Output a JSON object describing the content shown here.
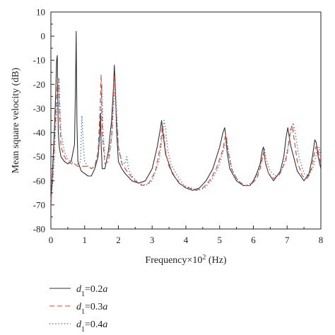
{
  "chart_data": {
    "type": "line",
    "xlabel": "Frequency×10² (Hz)",
    "xlabel_prefix": "Frequency×10",
    "xlabel_exp": "2",
    "xlabel_suffix": " (Hz)",
    "ylabel": "Mean square velocity (dB)",
    "xlim": [
      0,
      8
    ],
    "ylim": [
      -80,
      10
    ],
    "xticks": [
      0,
      1,
      2,
      3,
      4,
      5,
      6,
      7,
      8
    ],
    "yticks": [
      10,
      0,
      -10,
      -20,
      -30,
      -40,
      -50,
      -60,
      -70,
      -80
    ],
    "grid": false,
    "legend_position": "bottom-left",
    "series": [
      {
        "name": "d1=0.2a",
        "legend_label": {
          "var": "d",
          "sub": "1",
          "rest": "=0.2",
          "unit": "a"
        },
        "color": "#333333",
        "style": "solid",
        "x": [
          0.0,
          0.05,
          0.1,
          0.14,
          0.17,
          0.19,
          0.2,
          0.22,
          0.25,
          0.3,
          0.4,
          0.5,
          0.6,
          0.7,
          0.73,
          0.75,
          0.77,
          0.8,
          0.9,
          1.0,
          1.1,
          1.2,
          1.3,
          1.4,
          1.45,
          1.47,
          1.49,
          1.52,
          1.6,
          1.7,
          1.8,
          1.86,
          1.88,
          1.9,
          1.95,
          2.0,
          2.1,
          2.2,
          2.4,
          2.6,
          2.8,
          3.0,
          3.15,
          3.25,
          3.28,
          3.32,
          3.4,
          3.6,
          3.8,
          4.0,
          4.2,
          4.4,
          4.6,
          4.8,
          5.0,
          5.1,
          5.15,
          5.18,
          5.22,
          5.3,
          5.5,
          5.7,
          5.9,
          6.0,
          6.1,
          6.2,
          6.27,
          6.3,
          6.35,
          6.45,
          6.6,
          6.8,
          6.9,
          6.97,
          7.02,
          7.1,
          7.3,
          7.5,
          7.65,
          7.75,
          7.82,
          7.86,
          7.92,
          8.0
        ],
        "y": [
          -70,
          -55,
          -40,
          -25,
          -10,
          -8,
          -20,
          -40,
          -46,
          -50,
          -52,
          -53,
          -52,
          -45,
          -20,
          2,
          -35,
          -52,
          -56,
          -57,
          -58,
          -58,
          -55,
          -50,
          -40,
          -32,
          -45,
          -55,
          -55,
          -48,
          -35,
          -20,
          -12,
          -18,
          -40,
          -52,
          -55,
          -57,
          -60,
          -61,
          -60,
          -55,
          -46,
          -38,
          -35,
          -40,
          -49,
          -57,
          -61,
          -63,
          -64,
          -63,
          -60,
          -55,
          -46,
          -40,
          -38,
          -41,
          -48,
          -55,
          -60,
          -62,
          -62,
          -60,
          -57,
          -53,
          -47,
          -46,
          -52,
          -57,
          -60,
          -56,
          -50,
          -42,
          -38,
          -45,
          -56,
          -60,
          -57,
          -50,
          -43,
          -44,
          -50,
          -55
        ]
      },
      {
        "name": "d1=0.3a",
        "legend_label": {
          "var": "d",
          "sub": "1",
          "rest": "=0.3",
          "unit": "a"
        },
        "color": "#e0412a",
        "style": "dashed",
        "x": [
          0.0,
          0.05,
          0.1,
          0.15,
          0.2,
          0.23,
          0.25,
          0.3,
          0.4,
          0.5,
          0.6,
          0.7,
          0.8,
          0.9,
          1.0,
          1.1,
          1.2,
          1.3,
          1.4,
          1.46,
          1.49,
          1.52,
          1.6,
          1.7,
          1.8,
          1.86,
          1.89,
          1.92,
          2.0,
          2.1,
          2.2,
          2.3,
          2.5,
          2.7,
          2.9,
          3.1,
          3.25,
          3.3,
          3.34,
          3.4,
          3.5,
          3.7,
          3.9,
          4.1,
          4.3,
          4.5,
          4.7,
          4.9,
          5.1,
          5.16,
          5.19,
          5.24,
          5.35,
          5.5,
          5.7,
          5.9,
          6.1,
          6.2,
          6.29,
          6.31,
          6.36,
          6.45,
          6.6,
          6.75,
          6.85,
          6.95,
          7.0,
          7.05,
          7.1,
          7.15,
          7.2,
          7.3,
          7.45,
          7.6,
          7.72,
          7.8,
          7.85,
          7.9,
          7.95,
          8.0
        ],
        "y": [
          -68,
          -60,
          -45,
          -30,
          -18,
          -17,
          -30,
          -46,
          -50,
          -52,
          -53,
          -53,
          -54,
          -54,
          -54,
          -54,
          -55,
          -54,
          -48,
          -30,
          -16,
          -40,
          -53,
          -52,
          -42,
          -22,
          -16,
          -28,
          -46,
          -53,
          -55,
          -57,
          -60,
          -62,
          -61,
          -56,
          -45,
          -37,
          -40,
          -48,
          -54,
          -59,
          -62,
          -63,
          -64,
          -63,
          -60,
          -55,
          -47,
          -42,
          -41,
          -47,
          -55,
          -59,
          -62,
          -62,
          -59,
          -55,
          -49,
          -48,
          -53,
          -57,
          -59,
          -58,
          -55,
          -52,
          -49,
          -44,
          -39,
          -37,
          -42,
          -52,
          -58,
          -59,
          -55,
          -49,
          -46,
          -46,
          -50,
          -53
        ]
      },
      {
        "name": "d1=0.4a",
        "legend_label": {
          "var": "d",
          "sub": "1",
          "rest": "=0.4",
          "unit": "a"
        },
        "color": "#3a6ab0",
        "style": "dotted",
        "x": [
          0.0,
          0.05,
          0.1,
          0.15,
          0.2,
          0.24,
          0.26,
          0.3,
          0.4,
          0.5,
          0.6,
          0.7,
          0.8,
          0.88,
          0.92,
          0.96,
          1.0,
          1.1,
          1.2,
          1.3,
          1.4,
          1.48,
          1.51,
          1.54,
          1.6,
          1.7,
          1.8,
          1.88,
          1.91,
          1.94,
          2.0,
          2.1,
          2.2,
          2.25,
          2.3,
          2.4,
          2.6,
          2.8,
          3.0,
          3.2,
          3.3,
          3.35,
          3.4,
          3.45,
          3.55,
          3.75,
          3.95,
          4.15,
          4.35,
          4.55,
          4.75,
          4.95,
          5.12,
          5.18,
          5.21,
          5.26,
          5.38,
          5.55,
          5.75,
          5.95,
          6.1,
          6.22,
          6.3,
          6.33,
          6.38,
          6.5,
          6.65,
          6.8,
          6.9,
          7.0,
          7.05,
          7.12,
          7.18,
          7.24,
          7.35,
          7.5,
          7.65,
          7.78,
          7.88,
          7.95,
          8.0
        ],
        "y": [
          -66,
          -62,
          -50,
          -35,
          -25,
          -18,
          -28,
          -40,
          -48,
          -51,
          -52,
          -53,
          -53,
          -52,
          -33,
          -45,
          -52,
          -54,
          -55,
          -54,
          -50,
          -36,
          -20,
          -38,
          -50,
          -50,
          -42,
          -24,
          -20,
          -30,
          -46,
          -52,
          -53,
          -50,
          -55,
          -58,
          -61,
          -62,
          -60,
          -52,
          -42,
          -35,
          -38,
          -46,
          -53,
          -58,
          -62,
          -63,
          -64,
          -63,
          -60,
          -55,
          -47,
          -44,
          -43,
          -48,
          -56,
          -60,
          -62,
          -61,
          -58,
          -53,
          -49,
          -47,
          -51,
          -56,
          -58,
          -57,
          -53,
          -48,
          -44,
          -39,
          -36,
          -40,
          -50,
          -57,
          -58,
          -54,
          -48,
          -46,
          -50
        ]
      }
    ]
  }
}
